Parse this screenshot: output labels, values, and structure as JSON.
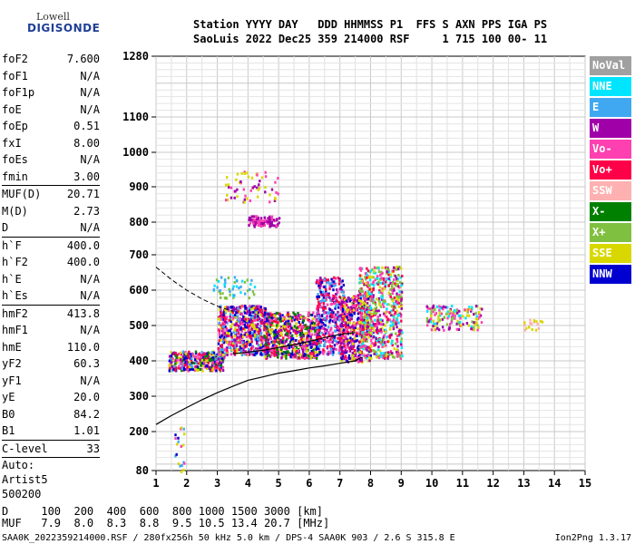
{
  "logo": {
    "line1": "Lowell",
    "line2": "DIGISONDE"
  },
  "header": {
    "line1": "Station YYYY DAY   DDD HHMMSS P1  FFS S AXN PPS IGA PS",
    "line2": "SaoLuis 2022 Dec25 359 214000 RSF     1 715 100 00- 11"
  },
  "params": [
    {
      "group": 1,
      "name": "foF2",
      "value": "7.600"
    },
    {
      "group": 1,
      "name": "foF1",
      "value": "N/A"
    },
    {
      "group": 1,
      "name": "foF1p",
      "value": "N/A"
    },
    {
      "group": 1,
      "name": "foE",
      "value": "N/A"
    },
    {
      "group": 1,
      "name": "foEp",
      "value": "0.51"
    },
    {
      "group": 1,
      "name": "fxI",
      "value": "8.00"
    },
    {
      "group": 1,
      "name": "foEs",
      "value": "N/A"
    },
    {
      "group": 1,
      "name": "fmin",
      "value": "3.00"
    },
    {
      "group": 2,
      "name": "MUF(D)",
      "value": "20.71"
    },
    {
      "group": 2,
      "name": "M(D)",
      "value": "2.73"
    },
    {
      "group": 2,
      "name": "D",
      "value": "N/A"
    },
    {
      "group": 3,
      "name": "h`F",
      "value": "400.0"
    },
    {
      "group": 3,
      "name": "h`F2",
      "value": "400.0"
    },
    {
      "group": 3,
      "name": "h`E",
      "value": "N/A"
    },
    {
      "group": 3,
      "name": "h`Es",
      "value": "N/A"
    },
    {
      "group": 4,
      "name": "hmF2",
      "value": "413.8"
    },
    {
      "group": 4,
      "name": "hmF1",
      "value": "N/A"
    },
    {
      "group": 4,
      "name": "hmE",
      "value": "110.0"
    },
    {
      "group": 4,
      "name": "yF2",
      "value": "60.3"
    },
    {
      "group": 4,
      "name": "yF1",
      "value": "N/A"
    },
    {
      "group": 4,
      "name": "yE",
      "value": "20.0"
    },
    {
      "group": 4,
      "name": "B0",
      "value": "84.2"
    },
    {
      "group": 4,
      "name": "B1",
      "value": "1.01"
    },
    {
      "group": 5,
      "name": "C-level",
      "value": "33"
    }
  ],
  "auto": {
    "label": "Auto:",
    "artist": "Artist5",
    "version": "500200"
  },
  "legend": [
    {
      "label": "NoVal",
      "color": "#a0a0a0"
    },
    {
      "label": "NNE",
      "color": "#00e5ff"
    },
    {
      "label": "E",
      "color": "#40a8f0"
    },
    {
      "label": "W",
      "color": "#a000a8"
    },
    {
      "label": "Vo-",
      "color": "#ff40b0"
    },
    {
      "label": "Vo+",
      "color": "#ff0048"
    },
    {
      "label": "SSW",
      "color": "#ffb0b0"
    },
    {
      "label": "X-",
      "color": "#008000"
    },
    {
      "label": "X+",
      "color": "#80c040"
    },
    {
      "label": "SSE",
      "color": "#d8d800"
    },
    {
      "label": "NNW",
      "color": "#0000d0"
    }
  ],
  "bottom_table": {
    "row1": "D     100  200  400  600  800 1000 1500 3000 [km]",
    "row2": "MUF   7.9  8.0  8.3  8.8  9.5 10.5 13.4 20.7 [MHz]"
  },
  "footer": {
    "left": "SAA0K_2022359214000.RSF / 280fx256h 50 kHz 5.0 km / DPS-4 SAA0K 903 / 2.6 S 315.8 E",
    "right": "Ion2Png 1.3.17"
  },
  "chart_data": {
    "type": "scatter",
    "xlim": [
      1,
      15
    ],
    "ylim": [
      80,
      1280
    ],
    "x_ticks": [
      1,
      2,
      3,
      4,
      5,
      6,
      7,
      8,
      9,
      10,
      11,
      12,
      13,
      14,
      15
    ],
    "y_ticks": [
      80,
      200,
      300,
      400,
      500,
      600,
      700,
      800,
      900,
      1000,
      1100,
      1280
    ],
    "y_scale": "ionogram-nonlinear",
    "grid": true,
    "profile_curve": [
      [
        1,
        220
      ],
      [
        1.5,
        245
      ],
      [
        2,
        268
      ],
      [
        2.5,
        290
      ],
      [
        3,
        310
      ],
      [
        3.5,
        328
      ],
      [
        4,
        345
      ],
      [
        4.5,
        355
      ],
      [
        5,
        365
      ],
      [
        5.5,
        372
      ],
      [
        6,
        380
      ],
      [
        6.5,
        386
      ],
      [
        7,
        393
      ],
      [
        7.5,
        400
      ],
      [
        7.7,
        410
      ]
    ],
    "trace_curve": [
      [
        3.5,
        420
      ],
      [
        4,
        425
      ],
      [
        4.5,
        430
      ],
      [
        5,
        438
      ],
      [
        5.5,
        446
      ],
      [
        6,
        455
      ],
      [
        6.5,
        466
      ],
      [
        7,
        475
      ],
      [
        7.5,
        480
      ]
    ],
    "dashed_curve": [
      [
        1,
        665
      ],
      [
        1.5,
        630
      ],
      [
        2,
        600
      ],
      [
        2.5,
        575
      ],
      [
        3,
        555
      ],
      [
        3.5,
        540
      ]
    ],
    "clusters": [
      {
        "x": [
          1.4,
          3.2
        ],
        "y": [
          375,
          430
        ],
        "n": 360,
        "colors": [
          "#0000d0",
          "#ff0048",
          "#a000a8",
          "#d8d800",
          "#ff40b0",
          "#40a8f0",
          "#008000"
        ]
      },
      {
        "x": [
          3.0,
          4.6
        ],
        "y": [
          420,
          560
        ],
        "n": 650,
        "colors": [
          "#a000a8",
          "#ff40b0",
          "#ff0048",
          "#0000d0",
          "#40a8f0",
          "#d8d800"
        ]
      },
      {
        "x": [
          4.5,
          6.3
        ],
        "y": [
          410,
          540
        ],
        "n": 620,
        "colors": [
          "#a000a8",
          "#ff40b0",
          "#ff0048",
          "#0000d0",
          "#d8d800",
          "#008000"
        ]
      },
      {
        "x": [
          6.2,
          7.1
        ],
        "y": [
          420,
          640
        ],
        "n": 420,
        "colors": [
          "#ff0048",
          "#ff40b0",
          "#a000a8",
          "#0000d0",
          "#40a8f0"
        ]
      },
      {
        "x": [
          7.0,
          8.0
        ],
        "y": [
          400,
          590
        ],
        "n": 460,
        "colors": [
          "#ff0048",
          "#ff40b0",
          "#a000a8",
          "#d8d800",
          "#0000d0"
        ]
      },
      {
        "x": [
          7.6,
          9.0
        ],
        "y": [
          410,
          670
        ],
        "n": 620,
        "colors": [
          "#ff0048",
          "#ff40b0",
          "#a000a8",
          "#d8d800",
          "#80c040",
          "#00e5ff"
        ]
      },
      {
        "x": [
          9.8,
          11.6
        ],
        "y": [
          490,
          560
        ],
        "n": 160,
        "colors": [
          "#80c040",
          "#d8d800",
          "#00e5ff",
          "#ff40b0",
          "#a000a8"
        ]
      },
      {
        "x": [
          4.0,
          5.0
        ],
        "y": [
          790,
          820
        ],
        "n": 90,
        "colors": [
          "#a000a8",
          "#ff40b0"
        ]
      },
      {
        "x": [
          3.2,
          5.0
        ],
        "y": [
          860,
          950
        ],
        "n": 60,
        "colors": [
          "#a000a8",
          "#ff40b0",
          "#d8d800"
        ]
      },
      {
        "x": [
          1.6,
          1.9
        ],
        "y": [
          80,
          220
        ],
        "n": 20,
        "colors": [
          "#0000d0",
          "#40a8f0",
          "#ff40b0",
          "#d8d800"
        ]
      },
      {
        "x": [
          2.8,
          4.2
        ],
        "y": [
          580,
          640
        ],
        "n": 50,
        "colors": [
          "#00e5ff",
          "#40a8f0",
          "#80c040"
        ]
      },
      {
        "x": [
          12.8,
          13.6
        ],
        "y": [
          490,
          520
        ],
        "n": 18,
        "colors": [
          "#ffb0b0",
          "#d8d800"
        ]
      }
    ]
  }
}
